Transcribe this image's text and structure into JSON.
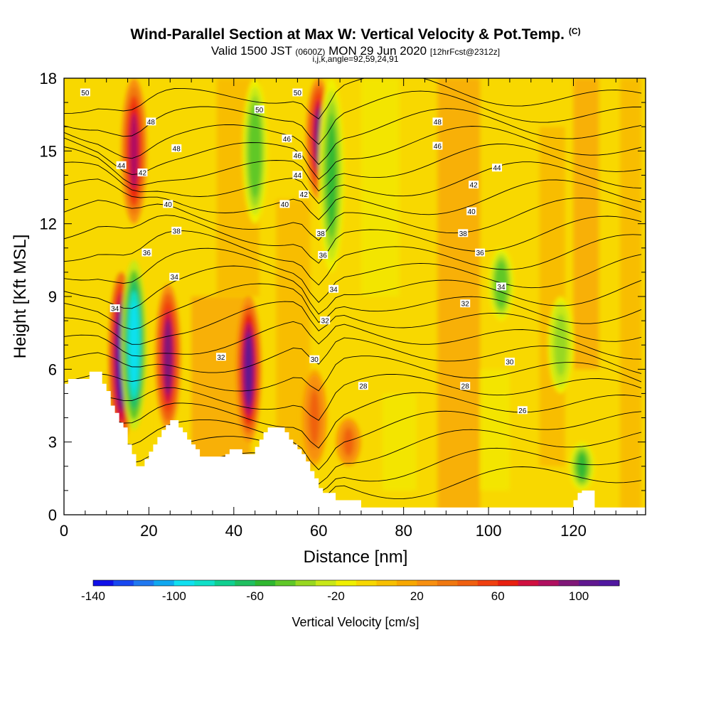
{
  "header": {
    "title": "Wind-Parallel Section at Max W: Vertical Velocity & Pot.Temp.",
    "copyright": "(C)",
    "valid_a": "Valid 1500 JST",
    "valid_utc": "(0600Z)",
    "valid_b": "MON 29 Jun 2020",
    "fcst": "[12hrFcst@2312z]",
    "indices": "i,j,k,angle=92,59,24,91"
  },
  "chart_data": {
    "type": "heatmap",
    "xlabel": "Distance [nm]",
    "ylabel": "Height [Kft MSL]",
    "xlim": [
      0,
      137
    ],
    "ylim": [
      0,
      18
    ],
    "x_ticks": [
      "0",
      "20",
      "40",
      "60",
      "80",
      "100",
      "120"
    ],
    "y_ticks": [
      "0",
      "3",
      "6",
      "9",
      "12",
      "15",
      "18"
    ],
    "colorbar": {
      "label": "Vertical Velocity [cm/s]",
      "min": -140,
      "max": 120,
      "step": 10,
      "tick_labels": [
        "-140",
        "-100",
        "-60",
        "-20",
        "20",
        "60",
        "100"
      ],
      "colors": [
        "#1010e8",
        "#1848f0",
        "#2078f0",
        "#10a8f0",
        "#10e0f0",
        "#10e0c8",
        "#10d090",
        "#20c060",
        "#30b830",
        "#60c828",
        "#98d820",
        "#c8e818",
        "#f0f000",
        "#f8d800",
        "#f8c000",
        "#f8a800",
        "#f89010",
        "#f07810",
        "#f06010",
        "#f04010",
        "#e82010",
        "#d01040",
        "#b01060",
        "#801878",
        "#601890",
        "#5018a0"
      ]
    },
    "vertical_velocity_features": [
      {
        "x": 13.5,
        "y": [
          3,
          10
        ],
        "w": 110
      },
      {
        "x": 16.5,
        "y": [
          3.5,
          10.5
        ],
        "w": -100
      },
      {
        "x": 16.5,
        "y": [
          12,
          18
        ],
        "w": 80
      },
      {
        "x": 24.5,
        "y": [
          3.5,
          9.5
        ],
        "w": 90
      },
      {
        "x": 43.5,
        "y": [
          3,
          9
        ],
        "w": 100
      },
      {
        "x": 45,
        "y": [
          12,
          18
        ],
        "w": -50
      },
      {
        "x": 59,
        "y": [
          2,
          6
        ],
        "w": 40
      },
      {
        "x": 60,
        "y": [
          13,
          18
        ],
        "w": 90
      },
      {
        "x": 63,
        "y": [
          10,
          18
        ],
        "w": -60
      },
      {
        "x": 67,
        "y": [
          2,
          4
        ],
        "w": 40
      },
      {
        "x": 103,
        "y": [
          8,
          11
        ],
        "w": -50
      },
      {
        "x": 117,
        "y": [
          5,
          9
        ],
        "w": -40
      },
      {
        "x": 122,
        "y": [
          1,
          3
        ],
        "w": -60
      }
    ],
    "theta_contour_labels": [
      {
        "v": "50",
        "x": 5,
        "y": 17.4
      },
      {
        "v": "50",
        "x": 55,
        "y": 17.4
      },
      {
        "v": "50",
        "x": 46,
        "y": 16.7
      },
      {
        "v": "48",
        "x": 20.5,
        "y": 16.2
      },
      {
        "v": "48",
        "x": 88,
        "y": 16.2
      },
      {
        "v": "48",
        "x": 26.5,
        "y": 15.1
      },
      {
        "v": "46",
        "x": 52.5,
        "y": 15.5
      },
      {
        "v": "46",
        "x": 88,
        "y": 15.2
      },
      {
        "v": "46",
        "x": 55,
        "y": 14.8
      },
      {
        "v": "44",
        "x": 13.5,
        "y": 14.4
      },
      {
        "v": "44",
        "x": 55,
        "y": 14.0
      },
      {
        "v": "44",
        "x": 102,
        "y": 14.3
      },
      {
        "v": "42",
        "x": 18.5,
        "y": 14.1
      },
      {
        "v": "42",
        "x": 56.5,
        "y": 13.2
      },
      {
        "v": "42",
        "x": 96.5,
        "y": 13.6
      },
      {
        "v": "40",
        "x": 24.5,
        "y": 12.8
      },
      {
        "v": "40",
        "x": 52,
        "y": 12.8
      },
      {
        "v": "40",
        "x": 96,
        "y": 12.5
      },
      {
        "v": "38",
        "x": 26.5,
        "y": 11.7
      },
      {
        "v": "38",
        "x": 60.5,
        "y": 11.6
      },
      {
        "v": "38",
        "x": 94,
        "y": 11.6
      },
      {
        "v": "36",
        "x": 19.5,
        "y": 10.8
      },
      {
        "v": "36",
        "x": 61,
        "y": 10.7
      },
      {
        "v": "36",
        "x": 98,
        "y": 10.8
      },
      {
        "v": "34",
        "x": 26,
        "y": 9.8
      },
      {
        "v": "34",
        "x": 12,
        "y": 8.5
      },
      {
        "v": "34",
        "x": 63.5,
        "y": 9.3
      },
      {
        "v": "34",
        "x": 103,
        "y": 9.4
      },
      {
        "v": "32",
        "x": 94.5,
        "y": 8.7
      },
      {
        "v": "32",
        "x": 61.5,
        "y": 8.0
      },
      {
        "v": "32",
        "x": 37,
        "y": 6.5
      },
      {
        "v": "30",
        "x": 59,
        "y": 6.4
      },
      {
        "v": "30",
        "x": 105,
        "y": 6.3
      },
      {
        "v": "28",
        "x": 70.5,
        "y": 5.3
      },
      {
        "v": "28",
        "x": 94.5,
        "y": 5.3
      },
      {
        "v": "26",
        "x": 108,
        "y": 4.3
      }
    ],
    "terrain_kft": [
      5.4,
      5.6,
      5.6,
      5.6,
      5.6,
      5.6,
      5.9,
      5.9,
      5.9,
      5.4,
      5.1,
      4.5,
      4.2,
      3.8,
      3.6,
      2.9,
      2.5,
      2.0,
      2.0,
      2.3,
      2.6,
      2.9,
      3.2,
      3.5,
      3.7,
      3.9,
      3.9,
      3.6,
      3.4,
      3.1,
      2.9,
      2.7,
      2.4,
      2.4,
      2.4,
      2.4,
      2.4,
      2.4,
      2.5,
      2.7,
      2.7,
      2.7,
      2.5,
      2.5,
      2.5,
      2.8,
      3.1,
      3.4,
      3.6,
      3.6,
      3.6,
      3.6,
      3.4,
      3.1,
      2.9,
      2.7,
      2.5,
      2.2,
      1.8,
      1.5,
      1.1,
      0.9,
      0.9,
      0.9,
      0.6,
      0.6,
      0.6,
      0.6,
      0.6,
      0.6,
      0.3,
      0.3,
      0.3,
      0.3,
      0.3,
      0.3,
      0.3,
      0.3,
      0.3,
      0.3,
      0.3,
      0.3,
      0.3,
      0.3,
      0.3,
      0.3,
      0.3,
      0.3,
      0.3,
      0.3,
      0.3,
      0.3,
      0.3,
      0.3,
      0.3,
      0.3,
      0.3,
      0.3,
      0.3,
      0.3,
      0.3,
      0.3,
      0.3,
      0.3,
      0.3,
      0.3,
      0.3,
      0.3,
      0.3,
      0.3,
      0.3,
      0.3,
      0.3,
      0.3,
      0.3,
      0.3,
      0.3,
      0.3,
      0.3,
      0.3,
      0.6,
      0.9,
      1.0,
      1.0,
      1.0,
      0.3,
      0.3,
      0.3,
      0.3,
      0.3,
      0.3,
      0.3,
      0.3,
      0.3,
      0.3,
      0.3,
      0.3,
      0.3
    ]
  }
}
